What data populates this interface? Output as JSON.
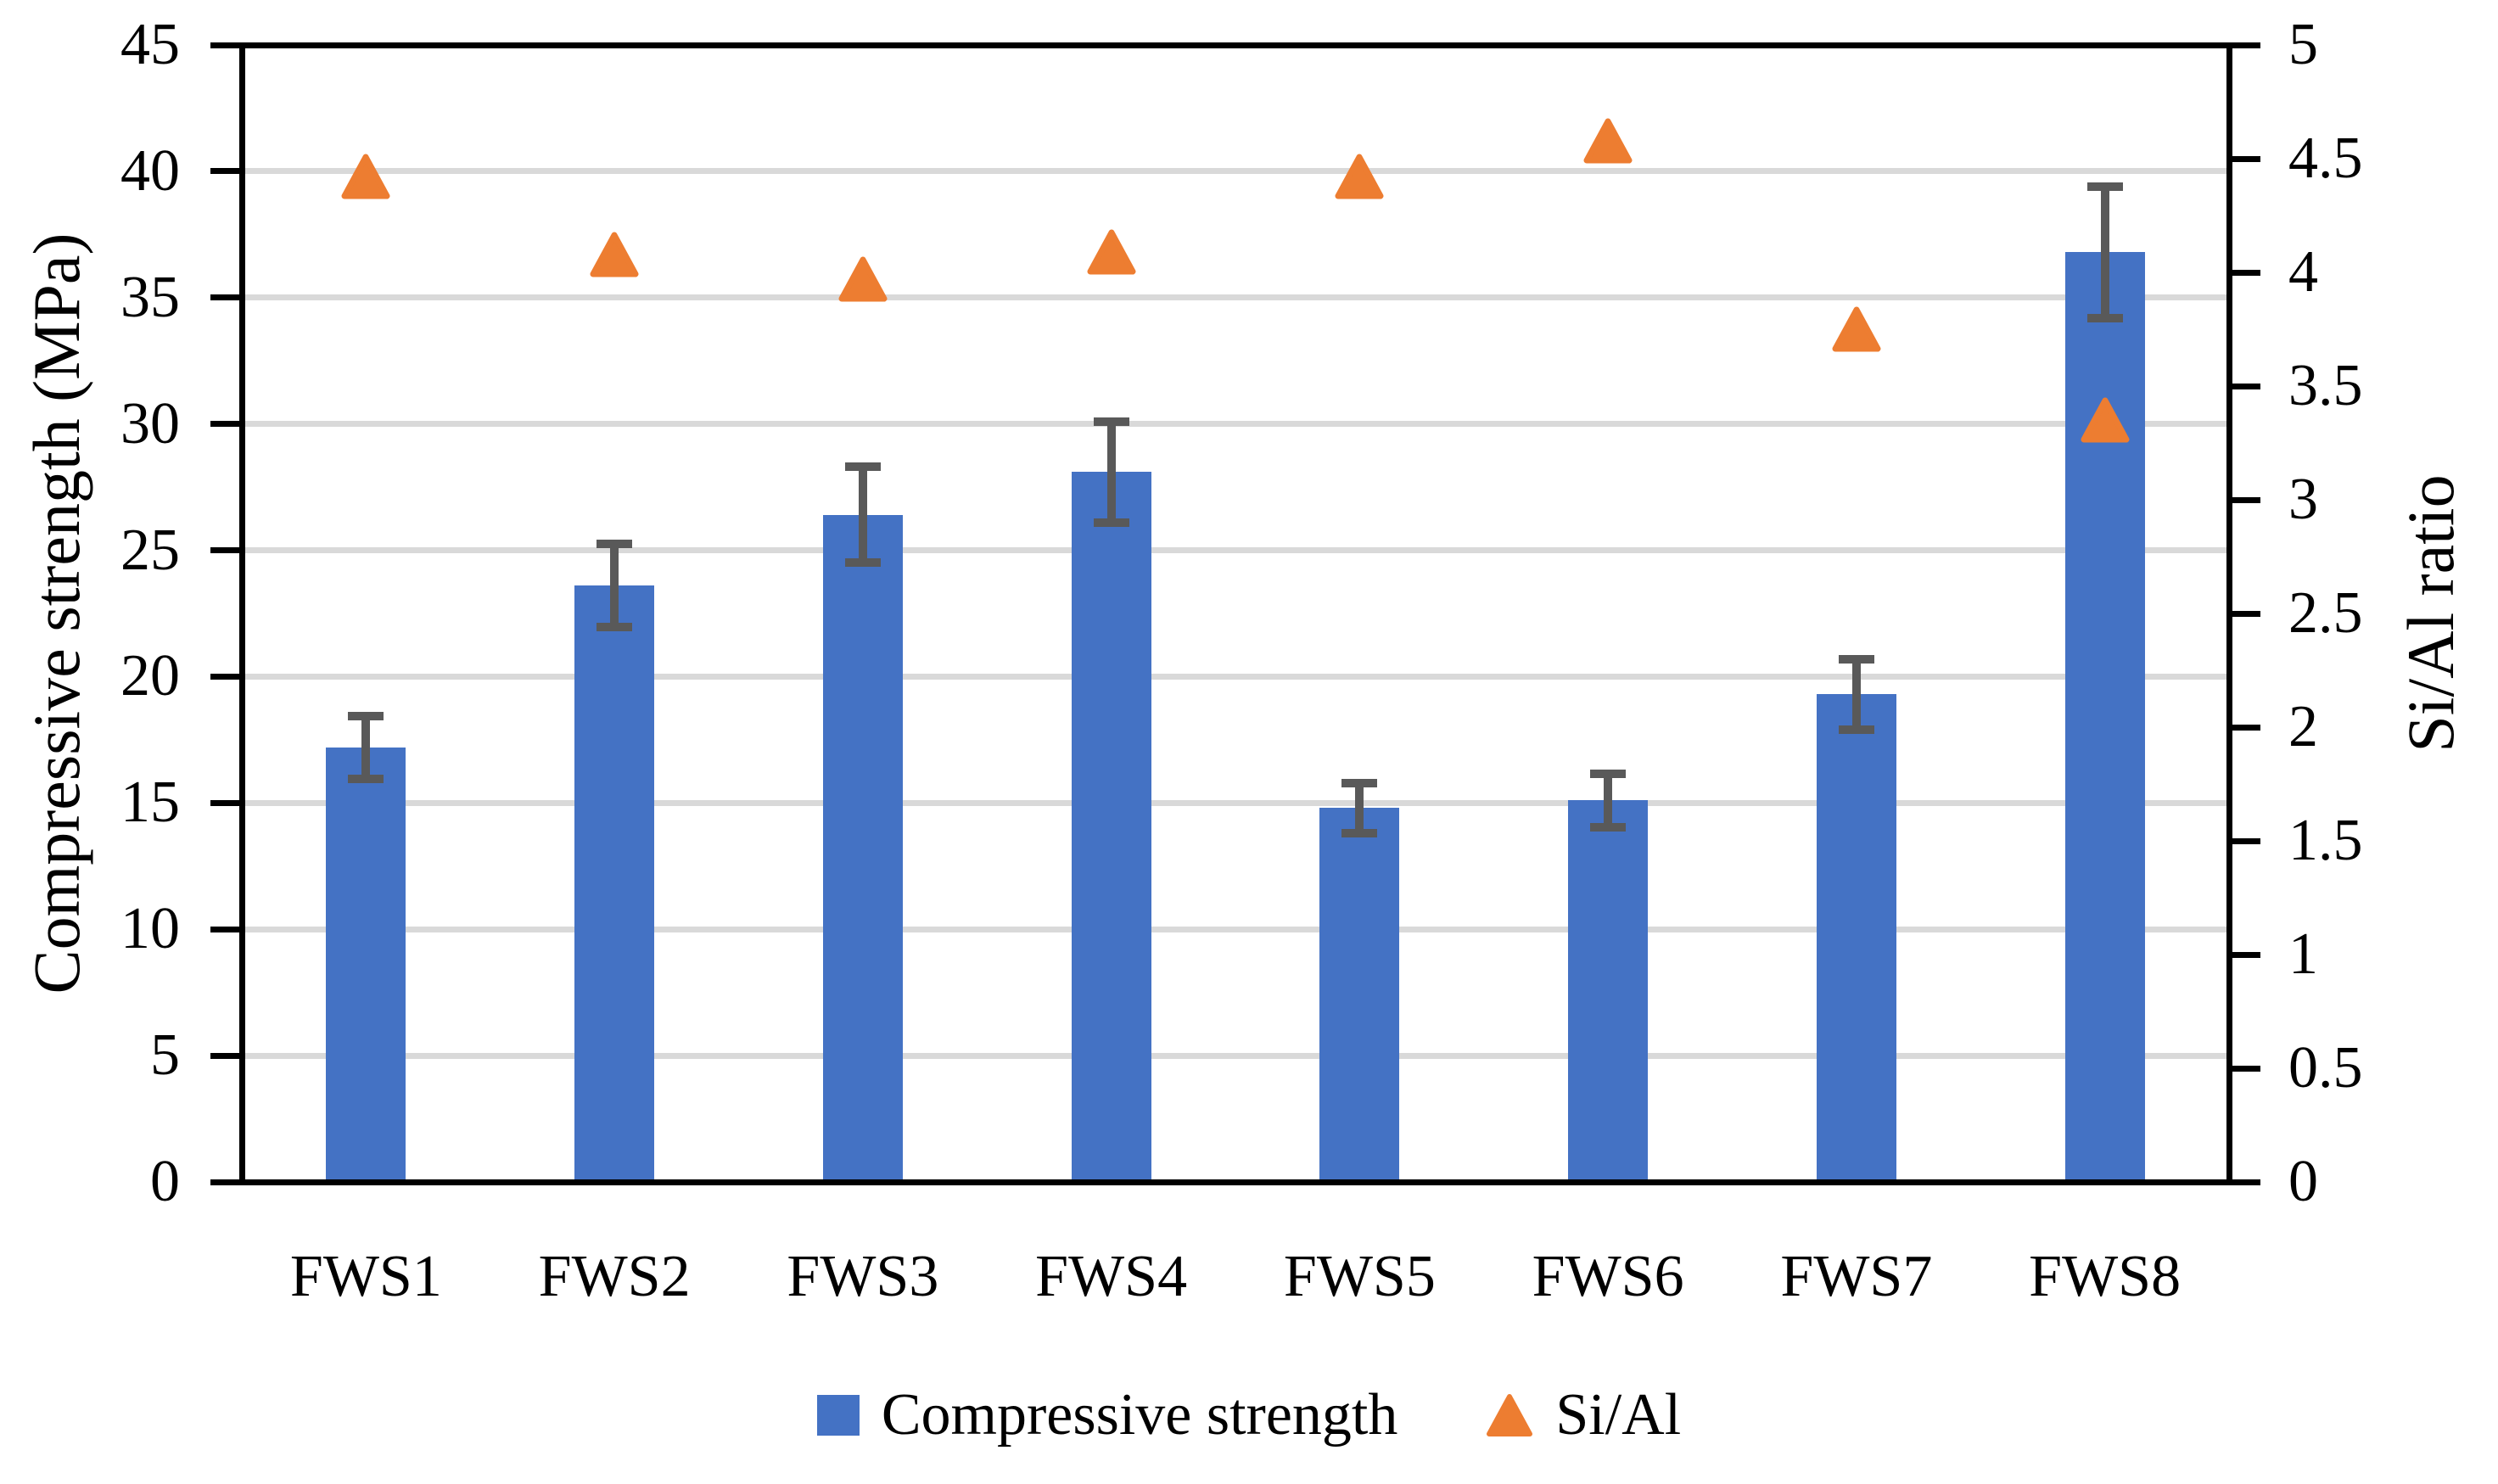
{
  "figure": {
    "background": "#FFFFFF",
    "left_axis_title": "Compressive strength (MPa)",
    "right_axis_title": "Si/Al ratio"
  },
  "legend": {
    "items": [
      {
        "label": "Compressive strength",
        "marker": "square",
        "color": "#4472C4"
      },
      {
        "label": "Si/Al",
        "marker": "triangle",
        "color": "#ED7D31"
      }
    ]
  },
  "chart_data": {
    "type": "bar",
    "combo": [
      "bar",
      "scatter"
    ],
    "title": "",
    "categories": [
      "FWS1",
      "FWS2",
      "FWS3",
      "FWS4",
      "FWS5",
      "FWS6",
      "FWS7",
      "FWS8"
    ],
    "series": [
      {
        "name": "Compressive strength",
        "type": "bar",
        "axis": "left",
        "color": "#4472C4",
        "values": [
          17.2,
          23.6,
          26.4,
          28.1,
          14.8,
          15.1,
          19.3,
          36.8
        ],
        "error_bars": [
          1.25,
          1.65,
          1.9,
          2.0,
          1.0,
          1.05,
          1.4,
          2.6
        ],
        "error_color": "#595959"
      },
      {
        "name": "Si/Al",
        "type": "scatter",
        "marker": "triangle",
        "axis": "right",
        "color": "#ED7D31",
        "values": [
          4.42,
          4.08,
          3.97,
          4.09,
          4.42,
          4.58,
          3.75,
          3.35
        ]
      }
    ],
    "left_axis": {
      "label": "Compressive strength (MPa)",
      "min": 0,
      "max": 45,
      "step": 5,
      "tick_labels": [
        "0",
        "5",
        "10",
        "15",
        "20",
        "25",
        "30",
        "35",
        "40",
        "45"
      ]
    },
    "right_axis": {
      "label": "Si/Al ratio",
      "min": 0,
      "max": 5,
      "step": 0.5,
      "tick_labels": [
        "0",
        "0.5",
        "1",
        "1.5",
        "2",
        "2.5",
        "3",
        "3.5",
        "4",
        "4.5",
        "5"
      ]
    },
    "grid": true,
    "gridline_color": "#D9D9D9",
    "legend_position": "bottom"
  }
}
